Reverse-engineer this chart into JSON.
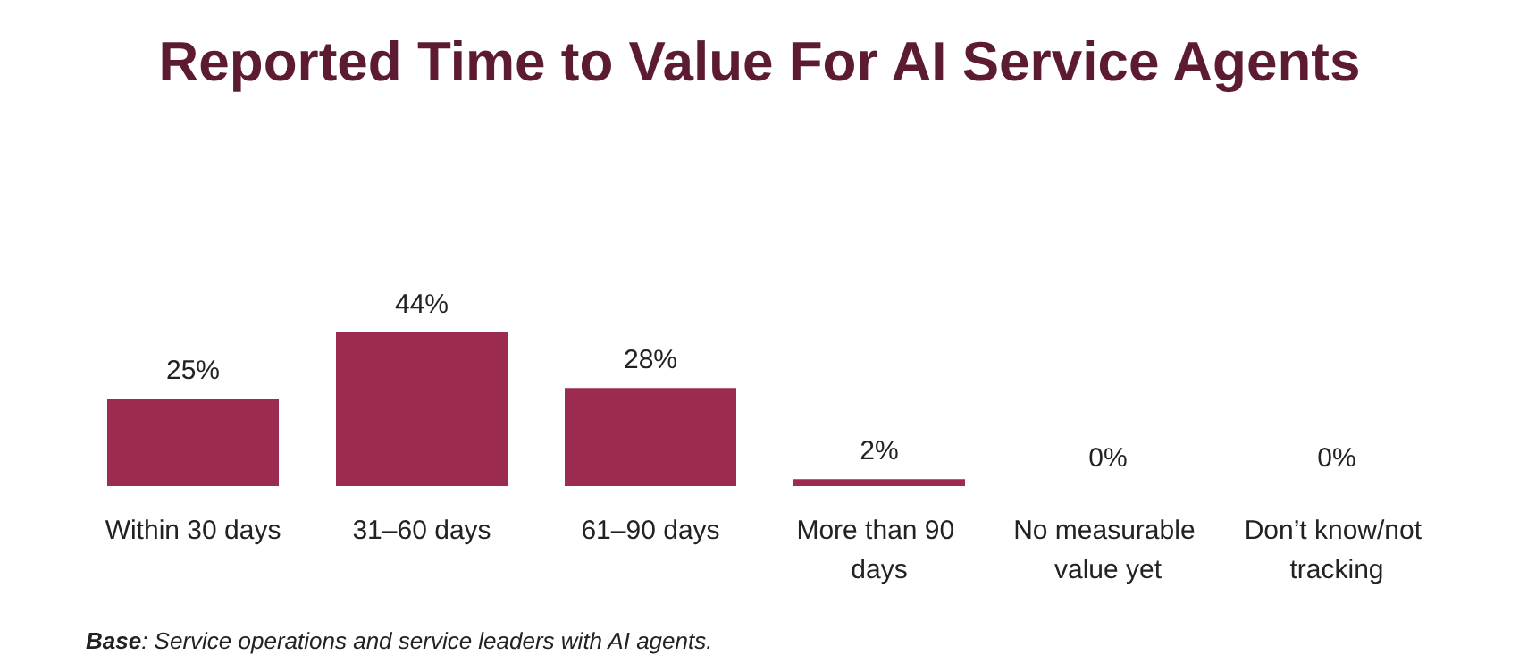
{
  "chart_data": {
    "type": "bar",
    "title": "Reported Time to Value For AI Service Agents",
    "categories": [
      "Within 30 days",
      "31–60 days",
      "61–90 days",
      "More than 90 days",
      "No measurable value yet",
      "Don’t know/not tracking"
    ],
    "values": [
      25,
      44,
      28,
      2,
      0,
      0
    ],
    "value_labels": [
      "25%",
      "44%",
      "28%",
      "2%",
      "0%",
      "0%"
    ],
    "color": "#9b2c4f",
    "annotations": [
      "Base: Service operations and service leaders with AI agents."
    ]
  }
}
